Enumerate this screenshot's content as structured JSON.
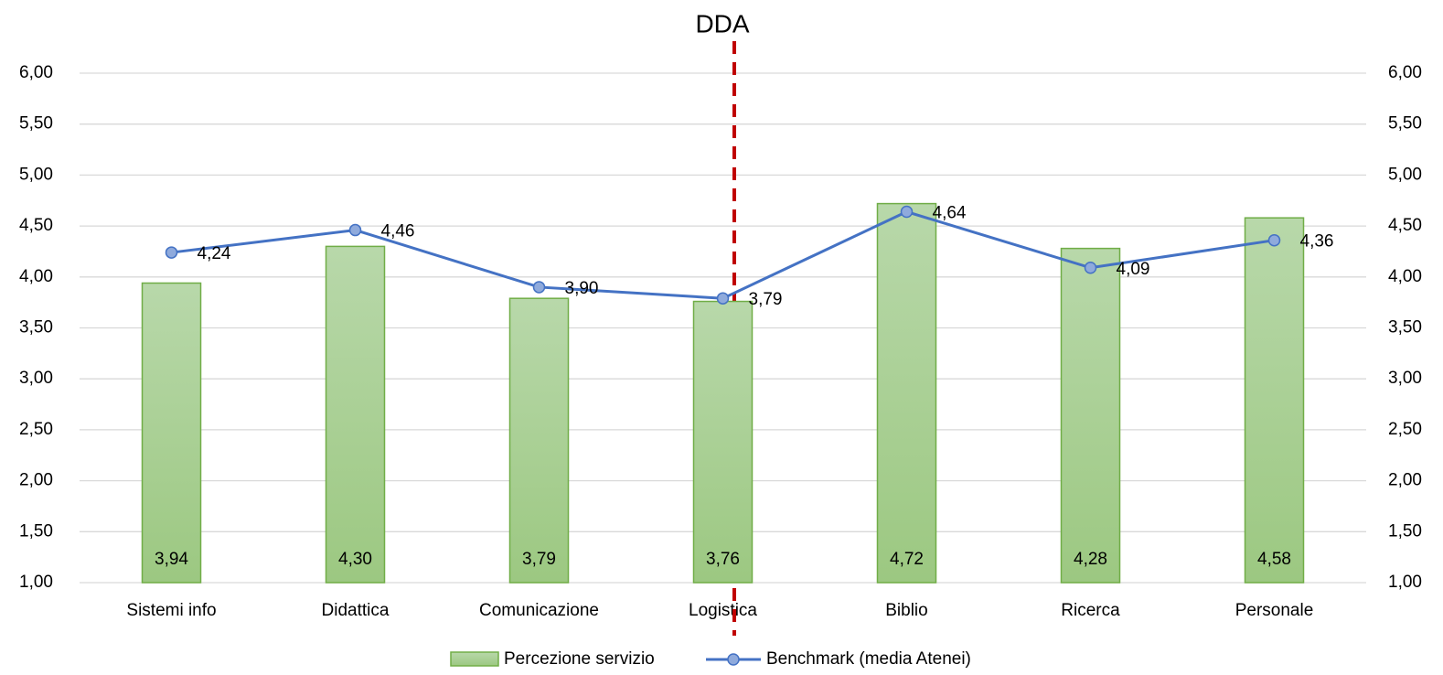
{
  "chart_data": {
    "type": "bar",
    "title": "DDA",
    "categories": [
      "Sistemi info",
      "Didattica",
      "Comunicazione",
      "Logistica",
      "Biblio",
      "Ricerca",
      "Personale"
    ],
    "series": [
      {
        "name": "Percezione servizio",
        "type": "bar",
        "color": "#70ad47",
        "values": [
          3.94,
          4.3,
          3.79,
          3.76,
          4.72,
          4.28,
          4.58
        ],
        "value_labels": [
          "3,94",
          "4,30",
          "3,79",
          "3,76",
          "4,72",
          "4,28",
          "4,58"
        ]
      },
      {
        "name": "Benchmark (media Atenei)",
        "type": "line",
        "axis": "y2",
        "color": "#4472c4",
        "values": [
          4.24,
          4.46,
          3.9,
          3.79,
          4.64,
          4.09,
          4.36
        ],
        "value_labels": [
          "4,24",
          "4,46",
          "3,90",
          "3,79",
          "4,64",
          "4,09",
          "4,36"
        ]
      }
    ],
    "ylim": [
      1,
      6
    ],
    "yticks": [
      {
        "value": 1,
        "label": "1,00"
      },
      {
        "value": 1.5,
        "label": "1,50"
      },
      {
        "value": 2,
        "label": "2,00"
      },
      {
        "value": 2.5,
        "label": "2,50"
      },
      {
        "value": 3,
        "label": "3,00"
      },
      {
        "value": 3.5,
        "label": "3,50"
      },
      {
        "value": 4,
        "label": "4,00"
      },
      {
        "value": 4.5,
        "label": "4,50"
      },
      {
        "value": 5,
        "label": "5,00"
      },
      {
        "value": 5.5,
        "label": "5,50"
      },
      {
        "value": 6,
        "label": "6,00"
      }
    ],
    "y2lim": [
      1,
      6
    ],
    "y2ticks": [
      {
        "value": 1,
        "label": "1,00"
      },
      {
        "value": 1.5,
        "label": "1,50"
      },
      {
        "value": 2,
        "label": "2,00"
      },
      {
        "value": 2.5,
        "label": "2,50"
      },
      {
        "value": 3,
        "label": "3,00"
      },
      {
        "value": 3.5,
        "label": "3,50"
      },
      {
        "value": 4,
        "label": "4,00"
      },
      {
        "value": 4.5,
        "label": "4,50"
      },
      {
        "value": 5,
        "label": "5,00"
      },
      {
        "value": 5.5,
        "label": "5,50"
      },
      {
        "value": 6,
        "label": "6,00"
      }
    ],
    "grid": true
  }
}
